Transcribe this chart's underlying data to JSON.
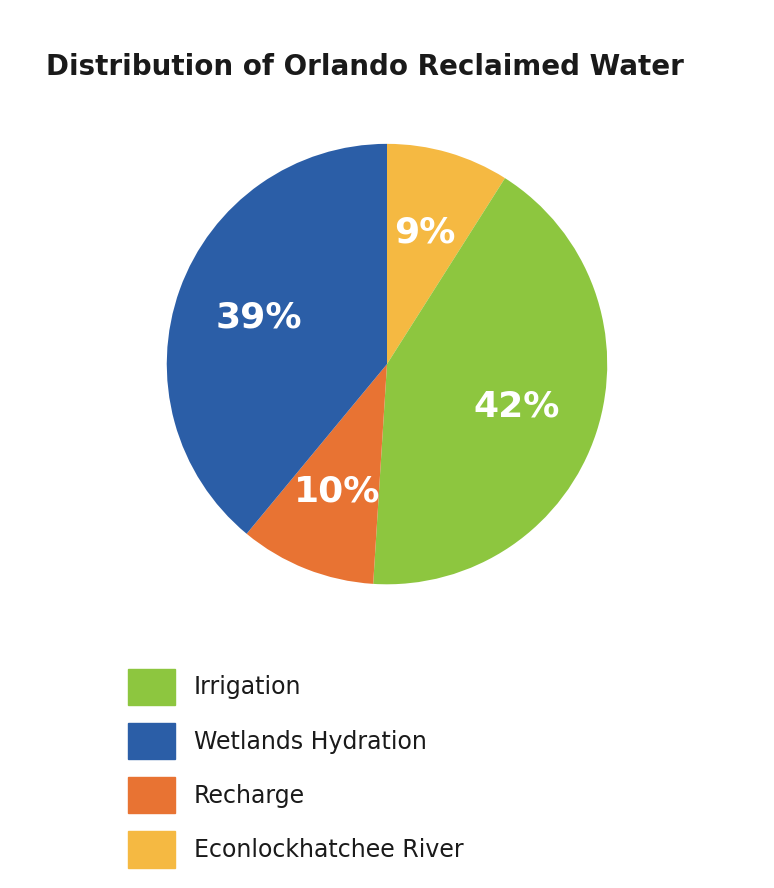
{
  "title": "Distribution of Orlando Reclaimed Water",
  "title_fontsize": 20,
  "title_fontweight": "bold",
  "labels": [
    "Irrigation",
    "Wetlands Hydration",
    "Recharge",
    "Econlockhatchee River"
  ],
  "colors": [
    "#8dc63f",
    "#2b5ea7",
    "#e87333",
    "#f5b942"
  ],
  "sizes_ordered": [
    9,
    42,
    10,
    39
  ],
  "colors_ordered": [
    "#f5b942",
    "#8dc63f",
    "#e87333",
    "#2b5ea7"
  ],
  "pct_labels_ordered": [
    "9%",
    "42%",
    "10%",
    "39%"
  ],
  "startangle": 90,
  "pct_fontsize": 26,
  "pct_fontweight": "bold",
  "pct_color": "white",
  "legend_fontsize": 17,
  "background_color": "#ffffff"
}
